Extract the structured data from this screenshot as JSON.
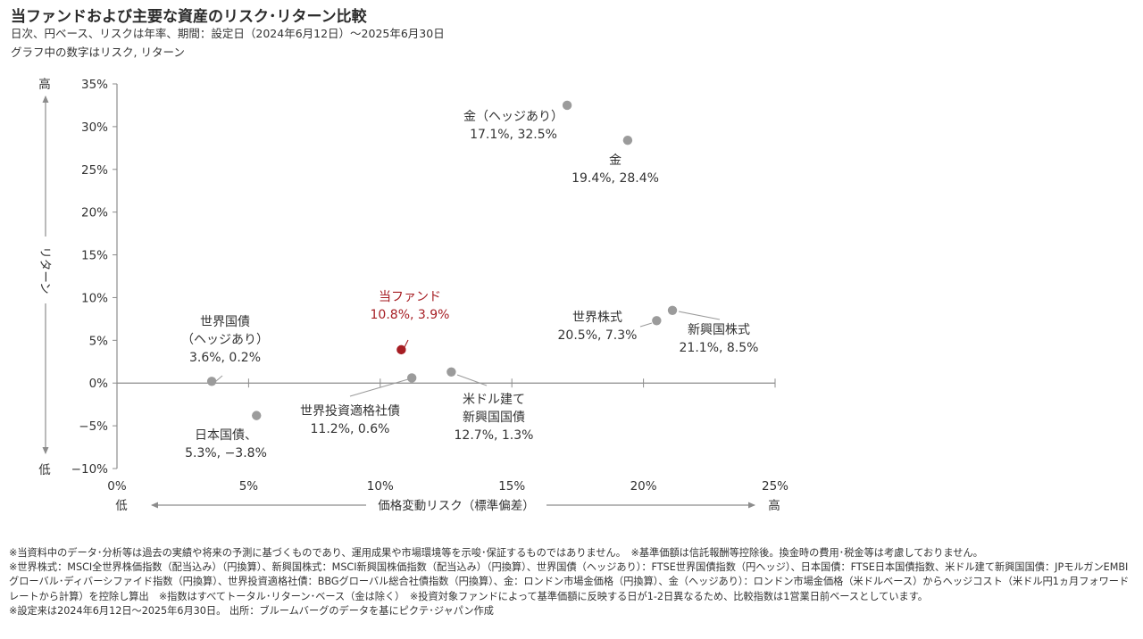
{
  "header": {
    "title": "当ファンドおよび主要な資産のリスク･リターン比較",
    "subtitle": "日次、円ベース、リスクは年率、期間：設定日（2024年6月12日）～2025年6月30日",
    "note": "グラフ中の数字はリスク, リターン"
  },
  "colors": {
    "fund": "#a61d23",
    "asset": "#9b9b9b",
    "axis": "#8c8c8c",
    "text": "#333333"
  },
  "chart_data": {
    "type": "scatter",
    "xlabel": "価格変動リスク（標準偏差）",
    "ylabel": "リターン",
    "x_low": "低",
    "x_high": "高",
    "y_low": "低",
    "y_high": "高",
    "xlim": [
      0,
      25
    ],
    "ylim": [
      -10,
      35
    ],
    "x_ticks": [
      {
        "value": 0,
        "label": "0%"
      },
      {
        "value": 5,
        "label": "5%"
      },
      {
        "value": 10,
        "label": "10%"
      },
      {
        "value": 15,
        "label": "15%"
      },
      {
        "value": 20,
        "label": "20%"
      },
      {
        "value": 25,
        "label": "25%"
      }
    ],
    "y_ticks": [
      {
        "value": 35,
        "label": "35%"
      },
      {
        "value": 30,
        "label": "30%"
      },
      {
        "value": 25,
        "label": "25%"
      },
      {
        "value": 20,
        "label": "20%"
      },
      {
        "value": 15,
        "label": "15%"
      },
      {
        "value": 10,
        "label": "10%"
      },
      {
        "value": 5,
        "label": "5%"
      },
      {
        "value": 0,
        "label": "0%"
      },
      {
        "value": -5,
        "label": "−5%"
      },
      {
        "value": -10,
        "label": "−10%"
      }
    ],
    "grid": false,
    "points": [
      {
        "key": "gold-hedged",
        "name_lines": [
          "金（ヘッジあり）"
        ],
        "value_label": "17.1%, 32.5%",
        "risk": 17.1,
        "return": 32.5,
        "highlight": false
      },
      {
        "key": "gold",
        "name_lines": [
          "金"
        ],
        "value_label": "19.4%, 28.4%",
        "risk": 19.4,
        "return": 28.4,
        "highlight": false
      },
      {
        "key": "fund",
        "name_lines": [
          "当ファンド"
        ],
        "value_label": "10.8%, 3.9%",
        "risk": 10.8,
        "return": 3.9,
        "highlight": true
      },
      {
        "key": "world-equity",
        "name_lines": [
          "世界株式"
        ],
        "value_label": "20.5%, 7.3%",
        "risk": 20.5,
        "return": 7.3,
        "highlight": false
      },
      {
        "key": "em-equity",
        "name_lines": [
          "新興国株式"
        ],
        "value_label": "21.1%, 8.5%",
        "risk": 21.1,
        "return": 8.5,
        "highlight": false
      },
      {
        "key": "world-bond-hedged",
        "name_lines": [
          "世界国債",
          "（ヘッジあり）"
        ],
        "value_label": "3.6%, 0.2%",
        "risk": 3.6,
        "return": 0.2,
        "highlight": false
      },
      {
        "key": "jgb",
        "name_lines": [
          "日本国債、"
        ],
        "value_label": "5.3%, −3.8%",
        "risk": 5.3,
        "return": -3.8,
        "highlight": false
      },
      {
        "key": "world-ig",
        "name_lines": [
          "世界投資適格社債"
        ],
        "value_label": "11.2%, 0.6%",
        "risk": 11.2,
        "return": 0.6,
        "highlight": false
      },
      {
        "key": "em-usd-bond",
        "name_lines": [
          "米ドル建て",
          "新興国国債"
        ],
        "value_label": "12.7%, 1.3%",
        "risk": 12.7,
        "return": 1.3,
        "highlight": false
      }
    ]
  },
  "footnotes": [
    "※当資料中のデータ･分析等は過去の実績や将来の予測に基づくものであり、運用成果や市場環境等を示唆･保証するものではありません。　※基準価額は信託報酬等控除後。換金時の費用･税金等は考慮しておりません。",
    "※世界株式：MSCI全世界株価指数（配当込み）（円換算）、新興国株式：MSCI新興国株価指数（配当込み）（円換算）、世界国債（ヘッジあり）：FTSE世界国債指数（円ヘッジ）、日本国債：FTSE日本国債指数、米ドル建て新興国国債：JPモルガンEMBIグローバル･ディバーシファイド指数（円換算）、世界投資適格社債：BBGグローバル総合社債指数（円換算）、金：ロンドン市場金価格（円換算）、金（ヘッジあり）：ロンドン市場金価格（米ドルベース）からヘッジコスト（米ドル円1ヵ月フォワードレートから計算）を控除し算出　※指数はすべてトータル･リターン･ベース（金は除く）　※投資対象ファンドによって基準価額に反映する日が1-2日異なるため、比較指数は1営業日前ベースとしています。",
    "※設定来は2024年6月12日～2025年6月30日。 出所：ブルームバーグのデータを基にピクテ･ジャパン作成"
  ]
}
